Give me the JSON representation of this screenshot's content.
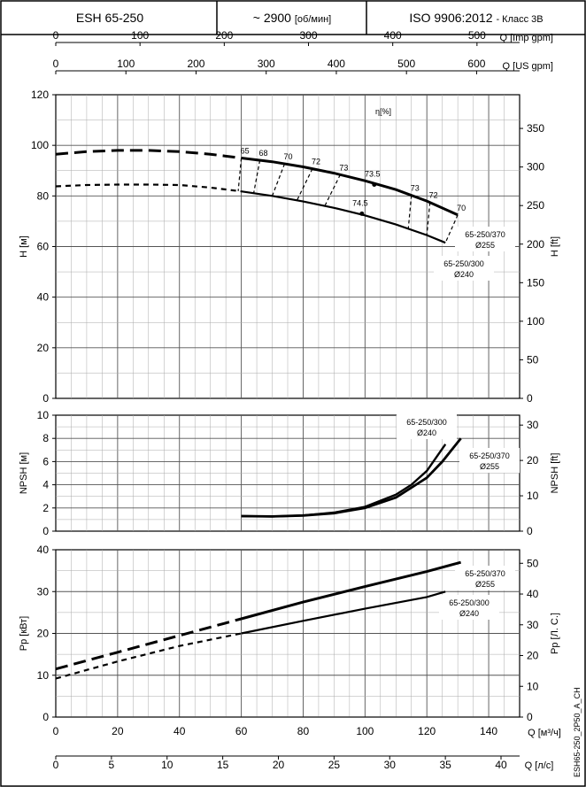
{
  "header": {
    "model": "ESH 65-250",
    "speed_value": "~ 2900",
    "speed_unit": "[об/мин]",
    "standard": "ISO 9906:2012",
    "class_label": "- Класс 3В"
  },
  "side_code": "ESH65-250_2P50_A_CH",
  "chart_data": [
    {
      "type": "line",
      "name": "head",
      "top_axes": [
        {
          "label": "Q [Imp gpm]",
          "ticks": [
            0,
            100,
            200,
            300,
            400,
            500
          ],
          "range": [
            0,
            550.6
          ]
        },
        {
          "label": "Q [US gpm]",
          "ticks": [
            0,
            100,
            200,
            300,
            400,
            500,
            600
          ],
          "range": [
            0,
            661.3
          ]
        }
      ],
      "ylabel": "H [м]",
      "ylim": [
        0,
        120
      ],
      "yticks": [
        0,
        20,
        40,
        60,
        80,
        100,
        120
      ],
      "y2label": "H [ft]",
      "y2lim": [
        0,
        393.7
      ],
      "y2ticks": [
        0,
        50,
        100,
        150,
        200,
        250,
        300,
        350
      ],
      "xlim": [
        0,
        150
      ],
      "efficiency_label": "η[%]",
      "series": [
        {
          "name": "65-250/370",
          "subname": "Ø255",
          "x": [
            0,
            10,
            20,
            30,
            40,
            50,
            60,
            70,
            80,
            90,
            100,
            110,
            120,
            130
          ],
          "y": [
            96.5,
            97.5,
            98,
            98,
            97.5,
            96.5,
            95,
            93.5,
            91.5,
            89,
            86,
            82.5,
            78,
            72.5
          ],
          "dashed_until_x": 60
        },
        {
          "name": "65-250/300",
          "subname": "Ø240",
          "x": [
            0,
            10,
            20,
            30,
            40,
            50,
            60,
            70,
            80,
            90,
            100,
            110,
            120,
            126
          ],
          "y": [
            83.8,
            84.3,
            84.5,
            84.5,
            84.3,
            83.3,
            81.8,
            80,
            77.8,
            75.3,
            72.3,
            68.7,
            64.5,
            61.5
          ],
          "dashed_until_x": 60
        }
      ],
      "efficiency_lines": [
        {
          "label": "65",
          "q_upper": 60,
          "q_lower": 59
        },
        {
          "label": "68",
          "q_upper": 66,
          "q_lower": 64
        },
        {
          "label": "70",
          "q_upper": 74,
          "q_lower": 70
        },
        {
          "label": "72",
          "q_upper": 83,
          "q_lower": 78
        },
        {
          "label": "73",
          "q_upper": 92,
          "q_lower": 87
        },
        {
          "label": "73",
          "q_upper": 115,
          "q_lower": 114
        },
        {
          "label": "72",
          "q_upper": 121,
          "q_lower": 120
        },
        {
          "label": "70",
          "q_upper": 130,
          "q_lower": 126
        }
      ],
      "efficiency_points": [
        {
          "label": "73.5",
          "x": 103,
          "y": 84.5
        },
        {
          "label": "74.5",
          "x": 99,
          "y": 73
        }
      ]
    },
    {
      "type": "line",
      "name": "npsh",
      "ylabel": "NPSH [м]",
      "ylim": [
        0,
        10
      ],
      "yticks": [
        0,
        2,
        4,
        6,
        8,
        10
      ],
      "y2label": "NPSH [ft]",
      "y2lim": [
        0,
        32.8
      ],
      "y2ticks": [
        0,
        10,
        20,
        30
      ],
      "xlim": [
        0,
        150
      ],
      "series": [
        {
          "name": "65-250/300",
          "subname": "Ø240",
          "x": [
            60,
            70,
            80,
            90,
            100,
            110,
            115,
            120,
            126
          ],
          "y": [
            1.3,
            1.27,
            1.35,
            1.6,
            2.1,
            3.15,
            4.0,
            5.2,
            7.5
          ]
        },
        {
          "name": "65-250/370",
          "subname": "Ø255",
          "x": [
            60,
            70,
            80,
            90,
            100,
            110,
            120,
            125,
            131
          ],
          "y": [
            1.3,
            1.27,
            1.35,
            1.55,
            2.0,
            2.9,
            4.6,
            6.0,
            8.0
          ]
        }
      ]
    },
    {
      "type": "line",
      "name": "power",
      "ylabel": "Pp [кВт]",
      "ylim": [
        0,
        40
      ],
      "yticks": [
        0,
        10,
        20,
        30,
        40
      ],
      "y2label": "Pp [Л. С.]",
      "y2lim": [
        0,
        54.4
      ],
      "y2ticks": [
        0,
        10,
        20,
        30,
        40,
        50
      ],
      "xlabel": "Q [м³/ч]",
      "xlim": [
        0,
        150
      ],
      "xticks": [
        0,
        20,
        40,
        60,
        80,
        100,
        120,
        140
      ],
      "x2label": "Q [л/с]",
      "x2lim": [
        0,
        41.67
      ],
      "x2ticks": [
        0,
        5,
        10,
        15,
        20,
        25,
        30,
        35,
        40
      ],
      "series": [
        {
          "name": "65-250/370",
          "subname": "Ø255",
          "x": [
            0,
            20,
            40,
            60,
            80,
            100,
            120,
            131
          ],
          "y": [
            11.5,
            15.5,
            19.5,
            23.5,
            27.5,
            31.2,
            34.8,
            37
          ],
          "dashed_until_x": 60
        },
        {
          "name": "65-250/300",
          "subname": "Ø240",
          "x": [
            0,
            20,
            40,
            60,
            80,
            100,
            120,
            126
          ],
          "y": [
            9.2,
            13.3,
            17,
            20,
            23,
            25.9,
            28.7,
            30
          ],
          "dashed_until_x": 60
        }
      ]
    }
  ]
}
